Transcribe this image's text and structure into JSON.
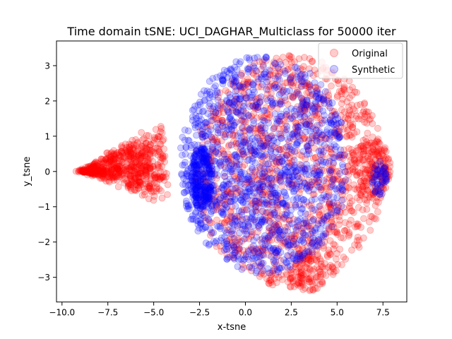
{
  "chart_data": {
    "type": "scatter",
    "title": "Time domain tSNE: UCI_DAGHAR_Multiclass for 50000 iter",
    "xlabel": "x-tsne",
    "ylabel": "y_tsne",
    "xlim": [
      -10.3,
      8.8
    ],
    "ylim": [
      -3.7,
      3.7
    ],
    "xticks": [
      -10.0,
      -7.5,
      -5.0,
      -2.5,
      0.0,
      2.5,
      5.0,
      7.5
    ],
    "xtick_labels": [
      "−10.0",
      "−7.5",
      "−5.0",
      "−2.5",
      "0.0",
      "2.5",
      "5.0",
      "7.5"
    ],
    "yticks": [
      -3,
      -2,
      -1,
      0,
      1,
      2,
      3
    ],
    "ytick_labels": [
      "−3",
      "−2",
      "−1",
      "0",
      "1",
      "2",
      "3"
    ],
    "grid": false,
    "legend": "top-right",
    "series": [
      {
        "name": "Original",
        "color": "#ff0000",
        "alpha": 0.2,
        "clusters": [
          {
            "shape": "wedge",
            "apex": [
              -9.1,
              0.0
            ],
            "base_x": -4.4,
            "base_y_range": [
              -1.0,
              1.55
            ],
            "count": 650
          },
          {
            "shape": "ellipse",
            "center": [
              2.4,
              0.0
            ],
            "radii": [
              5.2,
              3.3
            ],
            "count": 1300
          },
          {
            "shape": "ellipse",
            "center": [
              6.8,
              0.1
            ],
            "radii": [
              1.1,
              0.9
            ],
            "count": 150
          },
          {
            "shape": "ellipse",
            "center": [
              3.4,
              -2.9
            ],
            "radii": [
              1.0,
              0.5
            ],
            "count": 80
          }
        ]
      },
      {
        "name": "Synthetic",
        "color": "#0000ff",
        "alpha": 0.2,
        "clusters": [
          {
            "shape": "ellipse",
            "center": [
              1.0,
              0.2
            ],
            "radii": [
              4.6,
              3.1
            ],
            "count": 1300
          },
          {
            "shape": "ellipse",
            "center": [
              -2.4,
              -0.2
            ],
            "radii": [
              0.6,
              0.9
            ],
            "count": 250
          },
          {
            "shape": "ellipse",
            "center": [
              7.3,
              -0.2
            ],
            "radii": [
              0.4,
              0.5
            ],
            "count": 50
          }
        ]
      }
    ]
  }
}
